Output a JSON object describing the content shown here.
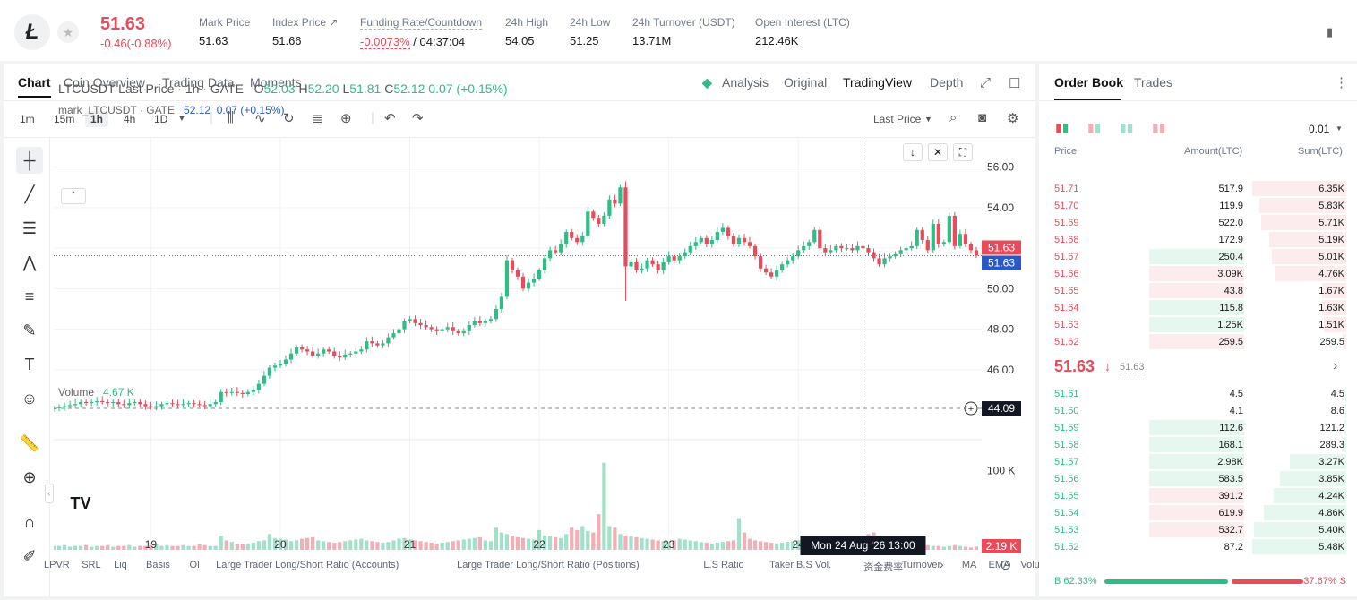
{
  "ticker": {
    "coin_glyph": "Ł",
    "price": "51.63",
    "change": "-0.46(-0.88%)",
    "stats": [
      {
        "label": "Mark Price",
        "value": "51.63"
      },
      {
        "label": "Index Price ↗",
        "value": "51.66"
      },
      {
        "label": "Funding Rate/Countdown",
        "value_red": "-0.0073%",
        "value_rest": " / 04:37:04"
      },
      {
        "label": "24h High",
        "value": "54.05"
      },
      {
        "label": "24h Low",
        "value": "51.25"
      },
      {
        "label": "24h Turnover (USDT)",
        "value": "13.71M"
      },
      {
        "label": "Open Interest (LTC)",
        "value": "212.46K"
      }
    ]
  },
  "chart_tabs": [
    "Chart",
    "Coin Overview",
    "Trading Data",
    "Moments"
  ],
  "view_tabs": {
    "analysis": "Analysis",
    "original": "Original",
    "tradingview": "TradingView",
    "depth": "Depth"
  },
  "timeframes": [
    "1m",
    "15m",
    "1h",
    "4h",
    "1D"
  ],
  "price_source": "Last Price",
  "legend": {
    "main": "LTCUSDT Last Price · 1h · GATE",
    "o": "O",
    "o_val": "52.03",
    "h": "H",
    "h_val": "52.20",
    "l": "L",
    "l_val": "51.81",
    "c": "C",
    "c_val": "52.12",
    "chg": "0.07 (+0.15%)",
    "mark": "mark_LTCUSDT · GATE",
    "mark_val": "52.12",
    "mark_chg": "0.07 (+0.15%)",
    "volume": "Volume",
    "volume_val": "4.67 K"
  },
  "price_labels": {
    "last": "51.63",
    "mark": "51.63",
    "cursor": "44.09",
    "volume_last": "2.19 K",
    "volume_axis": "100 K"
  },
  "crosshair_time": "Mon 24 Aug '26   13:00",
  "indicators": [
    "LPVR",
    "SRL",
    "Liq",
    "Basis",
    "OI",
    "Large Trader Long/Short Ratio (Accounts)",
    "Large Trader Long/Short Ratio (Positions)",
    "L.S Ratio",
    "Taker B.S Vol.",
    "资金费率",
    "Turnover",
    "MA",
    "EMA",
    "Volu"
  ],
  "chart_data": {
    "type": "candlestick",
    "ylim": [
      42.5,
      57.0
    ],
    "yticks": [
      "56.00",
      "54.00",
      "52.00",
      "50.00",
      "48.00",
      "46.00"
    ],
    "ytick_values": [
      56,
      54,
      52,
      50,
      48,
      46
    ],
    "xticks": [
      "19",
      "20",
      "21",
      "22",
      "23",
      "24"
    ],
    "xtick_values": [
      18,
      42,
      66,
      90,
      114,
      138
    ],
    "x_range": [
      0,
      172
    ],
    "closes": [
      44.1,
      44.15,
      44.2,
      44.25,
      44.3,
      44.4,
      44.35,
      44.4,
      44.45,
      44.4,
      44.35,
      44.4,
      44.3,
      44.25,
      44.35,
      44.4,
      44.3,
      44.2,
      44.15,
      44.2,
      44.3,
      44.35,
      44.3,
      44.25,
      44.3,
      44.35,
      44.3,
      44.25,
      44.2,
      44.3,
      44.4,
      44.9,
      44.85,
      44.9,
      44.85,
      44.8,
      44.9,
      45.0,
      45.3,
      45.7,
      46.1,
      46.2,
      46.3,
      46.5,
      46.8,
      47.1,
      47.0,
      46.9,
      46.7,
      46.8,
      47.0,
      46.9,
      46.7,
      46.6,
      46.75,
      46.8,
      46.9,
      47.0,
      47.4,
      47.3,
      47.2,
      47.3,
      47.6,
      47.8,
      48.0,
      48.4,
      48.5,
      48.3,
      48.2,
      48.1,
      48.0,
      47.9,
      48.0,
      48.1,
      47.9,
      47.8,
      47.9,
      48.2,
      48.4,
      48.3,
      48.4,
      48.5,
      49.0,
      49.6,
      51.4,
      50.9,
      50.6,
      50.0,
      50.3,
      50.5,
      50.9,
      51.5,
      51.9,
      51.8,
      52.2,
      52.8,
      52.5,
      52.3,
      52.6,
      53.8,
      53.5,
      53.2,
      53.6,
      54.4,
      54.2,
      55.0,
      51.1,
      51.3,
      50.9,
      51.0,
      51.4,
      51.2,
      50.9,
      51.3,
      51.6,
      51.4,
      51.6,
      51.8,
      52.1,
      52.3,
      52.5,
      52.2,
      52.4,
      52.8,
      53.0,
      52.6,
      52.2,
      52.5,
      52.3,
      52.1,
      51.6,
      51.0,
      50.8,
      50.6,
      50.9,
      51.2,
      51.4,
      51.6,
      51.9,
      52.1,
      52.3,
      52.9,
      52.0,
      51.8,
      51.9,
      52.1,
      52.0,
      52.0,
      51.9,
      52.1,
      52.0,
      51.8,
      51.5,
      51.2,
      51.5,
      51.6,
      51.7,
      51.9,
      52.0,
      52.1,
      52.9,
      52.4,
      51.9,
      53.2,
      52.2,
      52.3,
      53.6,
      52.1,
      52.7,
      52.2,
      51.9,
      51.63
    ],
    "volume": {
      "type": "bar",
      "values": [
        5,
        5,
        6,
        4,
        5,
        5,
        6,
        4,
        5,
        5,
        6,
        4,
        5,
        5,
        6,
        4,
        5,
        5,
        6,
        7,
        5,
        6,
        5,
        5,
        6,
        5,
        5,
        7,
        6,
        5,
        5,
        18,
        12,
        10,
        8,
        7,
        8,
        9,
        11,
        12,
        20,
        15,
        14,
        13,
        11,
        12,
        14,
        15,
        16,
        12,
        11,
        10,
        9,
        10,
        11,
        12,
        13,
        14,
        12,
        11,
        10,
        9,
        10,
        12,
        14,
        15,
        13,
        12,
        11,
        10,
        9,
        8,
        9,
        10,
        11,
        12,
        13,
        14,
        15,
        16,
        12,
        11,
        28,
        22,
        20,
        18,
        16,
        15,
        14,
        13,
        25,
        18,
        17,
        16,
        15,
        20,
        28,
        25,
        30,
        24,
        22,
        45,
        110,
        30,
        28,
        20,
        18,
        17,
        16,
        15,
        14,
        13,
        12,
        11,
        10,
        12,
        14,
        13,
        12,
        11,
        10,
        9,
        8,
        9,
        10,
        11,
        12,
        40,
        22,
        14,
        12,
        11,
        10,
        9,
        8,
        9,
        10,
        11,
        12,
        13,
        14,
        15,
        16,
        14,
        12,
        11,
        10,
        12,
        14,
        16,
        18,
        20,
        22,
        18,
        16,
        12,
        10,
        9,
        8,
        7,
        6,
        5,
        6,
        5,
        5,
        4,
        5,
        6,
        5,
        4,
        3,
        4
      ],
      "ylim": [
        0,
        130
      ],
      "yticks": [
        "100 K"
      ],
      "ytick_values": [
        100
      ]
    }
  },
  "orderbook": {
    "tabs": [
      "Order Book",
      "Trades"
    ],
    "precision": "0.01",
    "headers": [
      "Price",
      "Amount(LTC)",
      "Sum(LTC)"
    ],
    "asks": [
      {
        "price": "51.71",
        "amount": "517.9",
        "sum": "6.35K",
        "amt_frac": 0,
        "sum_frac": 1.0
      },
      {
        "price": "51.70",
        "amount": "119.9",
        "sum": "5.83K",
        "amt_frac": 0,
        "sum_frac": 0.92
      },
      {
        "price": "51.69",
        "amount": "522.0",
        "sum": "5.71K",
        "amt_frac": 0,
        "sum_frac": 0.9
      },
      {
        "price": "51.68",
        "amount": "172.9",
        "sum": "5.19K",
        "amt_frac": 0,
        "sum_frac": 0.82
      },
      {
        "price": "51.67",
        "amount": "250.4",
        "sum": "5.01K",
        "amt_frac": 0.3,
        "sum_frac": 0.79,
        "amt_green": true
      },
      {
        "price": "51.66",
        "amount": "3.09K",
        "sum": "4.76K",
        "amt_frac": 0.3,
        "sum_frac": 0.75
      },
      {
        "price": "51.65",
        "amount": "43.8",
        "sum": "1.67K",
        "amt_frac": 0.3,
        "sum_frac": 0.26
      },
      {
        "price": "51.64",
        "amount": "115.8",
        "sum": "1.63K",
        "amt_frac": 0.3,
        "sum_frac": 0.26,
        "amt_green": true
      },
      {
        "price": "51.63",
        "amount": "1.25K",
        "sum": "1.51K",
        "amt_frac": 0.3,
        "sum_frac": 0.24,
        "amt_green": true
      },
      {
        "price": "51.62",
        "amount": "259.5",
        "sum": "259.5",
        "amt_frac": 0.3,
        "sum_frac": 0.04
      }
    ],
    "mid": {
      "price": "51.63",
      "arrow": "↓",
      "mark": "51.63"
    },
    "bids": [
      {
        "price": "51.61",
        "amount": "4.5",
        "sum": "4.5",
        "amt_frac": 0,
        "sum_frac": 0.01
      },
      {
        "price": "51.60",
        "amount": "4.1",
        "sum": "8.6",
        "amt_frac": 0,
        "sum_frac": 0.01
      },
      {
        "price": "51.59",
        "amount": "112.6",
        "sum": "121.2",
        "amt_frac": 0.3,
        "sum_frac": 0.02
      },
      {
        "price": "51.58",
        "amount": "168.1",
        "sum": "289.3",
        "amt_frac": 0.3,
        "sum_frac": 0.05
      },
      {
        "price": "51.57",
        "amount": "2.98K",
        "sum": "3.27K",
        "amt_frac": 0.3,
        "sum_frac": 0.6
      },
      {
        "price": "51.56",
        "amount": "583.5",
        "sum": "3.85K",
        "amt_frac": 0.3,
        "sum_frac": 0.7
      },
      {
        "price": "51.55",
        "amount": "391.2",
        "sum": "4.24K",
        "amt_frac": 0.3,
        "sum_frac": 0.77,
        "amt_red": true
      },
      {
        "price": "51.54",
        "amount": "619.9",
        "sum": "4.86K",
        "amt_frac": 0.3,
        "sum_frac": 0.88,
        "amt_red": true
      },
      {
        "price": "51.53",
        "amount": "532.7",
        "sum": "5.40K",
        "amt_frac": 0.3,
        "sum_frac": 0.98,
        "amt_red": true
      },
      {
        "price": "51.52",
        "amount": "87.2",
        "sum": "5.48K",
        "amt_frac": 0,
        "sum_frac": 1.0
      }
    ],
    "ratio": {
      "buy": "B 62.33%",
      "sell": "37.67% S",
      "buy_frac": 0.6233
    }
  },
  "colors": {
    "up": "#2ebd85",
    "down": "#e84c5a",
    "up_light": "#e6f7ef",
    "down_light": "#fdecee"
  }
}
